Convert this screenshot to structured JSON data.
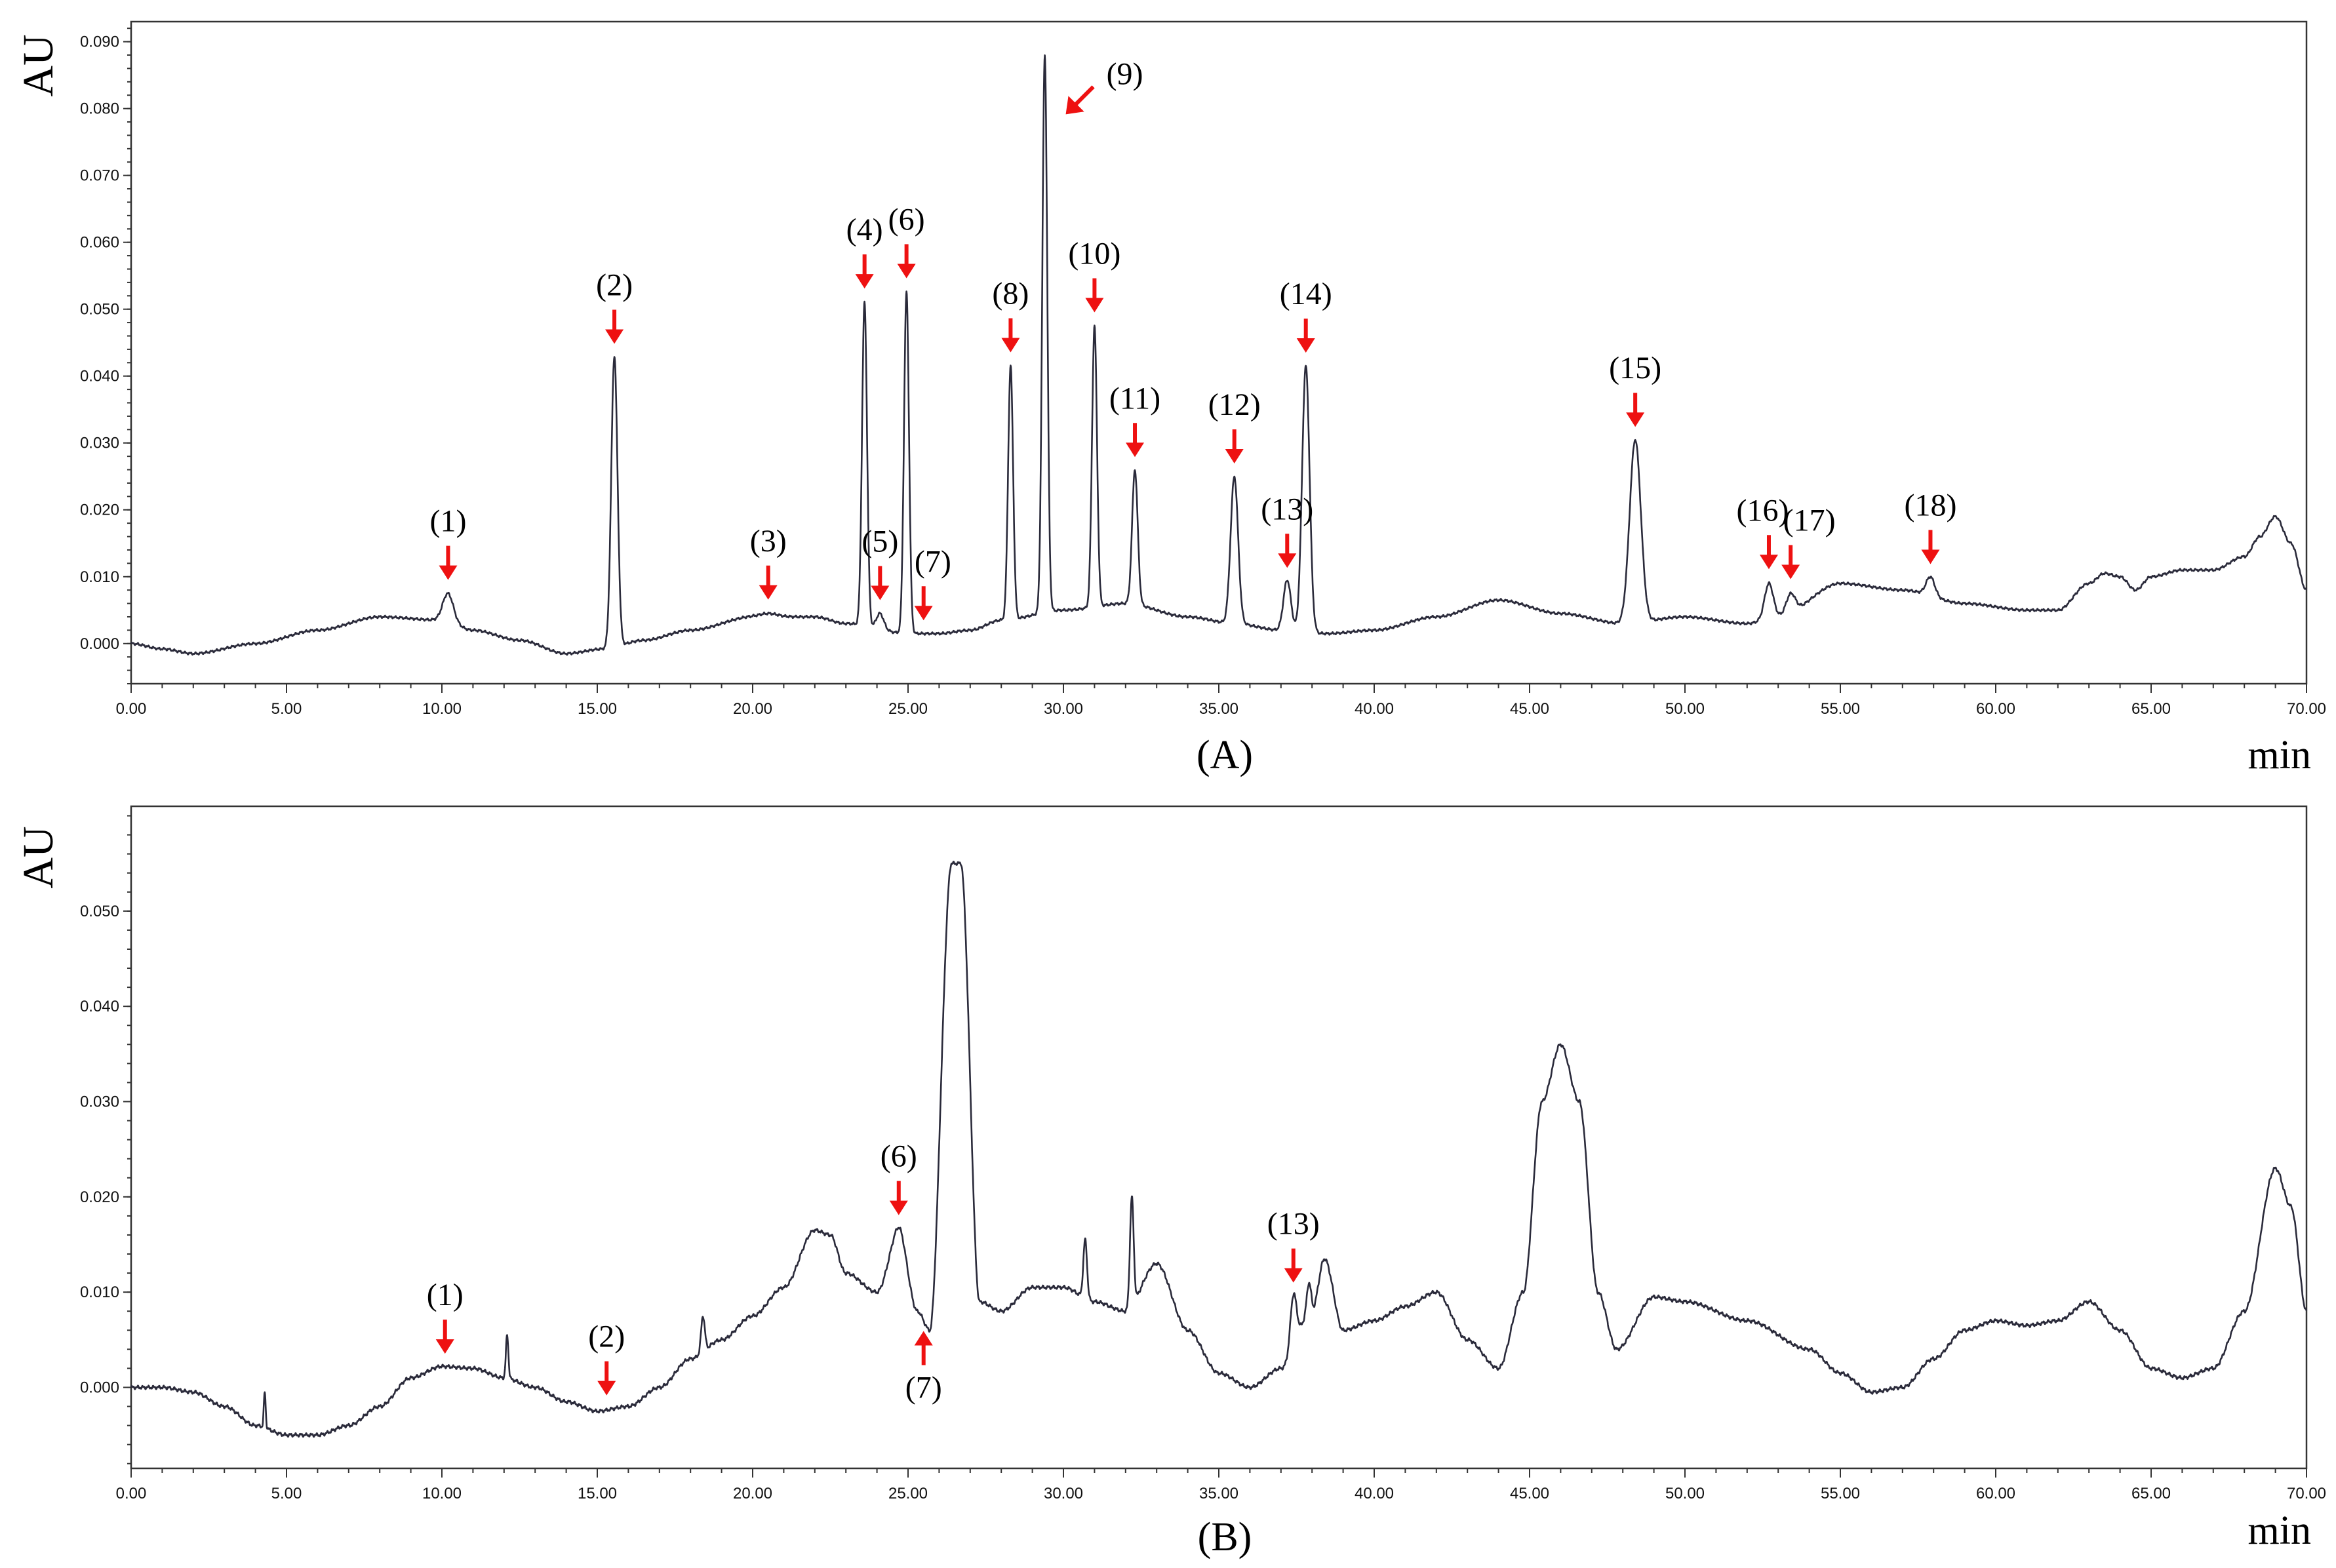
{
  "chart_data": [
    {
      "type": "line",
      "panel_label": "(A)",
      "ylabel": "AU",
      "xlabel": "min",
      "xlim": [
        0,
        70
      ],
      "ylim": [
        -0.006,
        0.093
      ],
      "x_ticks": [
        "0.00",
        "5.00",
        "10.00",
        "15.00",
        "20.00",
        "25.00",
        "30.00",
        "35.00",
        "40.00",
        "45.00",
        "50.00",
        "55.00",
        "60.00",
        "65.00",
        "70.00"
      ],
      "y_ticks": [
        "0.000",
        "0.010",
        "0.020",
        "0.030",
        "0.040",
        "0.050",
        "0.060",
        "0.070",
        "0.080",
        "0.090"
      ],
      "baseline": [
        [
          0,
          0.0
        ],
        [
          1,
          -0.0008
        ],
        [
          2,
          -0.0015
        ],
        [
          4,
          0.0
        ],
        [
          6,
          0.002
        ],
        [
          8,
          0.004
        ],
        [
          10,
          0.0035
        ],
        [
          11,
          0.002
        ],
        [
          12.5,
          0.0005
        ],
        [
          14,
          -0.0015
        ],
        [
          15.2,
          -0.0008
        ],
        [
          16.5,
          0.0005
        ],
        [
          18,
          0.002
        ],
        [
          20,
          0.004
        ],
        [
          22,
          0.004
        ],
        [
          23,
          0.003
        ],
        [
          25,
          0.0015
        ],
        [
          26,
          0.0015
        ],
        [
          27,
          0.002
        ],
        [
          28,
          0.0035
        ],
        [
          30,
          0.005
        ],
        [
          32,
          0.006
        ],
        [
          34,
          0.004
        ],
        [
          35.5,
          0.003
        ],
        [
          37,
          0.002
        ],
        [
          38.5,
          0.0015
        ],
        [
          40,
          0.002
        ],
        [
          42,
          0.004
        ],
        [
          44,
          0.0065
        ],
        [
          46,
          0.0045
        ],
        [
          48,
          0.003
        ],
        [
          50,
          0.004
        ],
        [
          52,
          0.003
        ],
        [
          53,
          0.004
        ],
        [
          55,
          0.009
        ],
        [
          57,
          0.008
        ],
        [
          59,
          0.006
        ],
        [
          61,
          0.005
        ],
        [
          62,
          0.005
        ],
        [
          63,
          0.009
        ],
        [
          63.5,
          0.0105
        ],
        [
          64,
          0.01
        ],
        [
          64.5,
          0.008
        ],
        [
          65,
          0.01
        ],
        [
          66,
          0.011
        ],
        [
          67,
          0.011
        ],
        [
          68,
          0.013
        ],
        [
          68.5,
          0.016
        ],
        [
          69,
          0.019
        ],
        [
          69.5,
          0.015
        ],
        [
          70,
          0.008
        ]
      ],
      "peaks": [
        {
          "label": "(1)",
          "x": 10.2,
          "y": 0.0075,
          "w": 0.17
        },
        {
          "label": "(2)",
          "x": 15.55,
          "y": 0.043,
          "w": 0.1
        },
        {
          "label": "(3)",
          "x": 20.5,
          "y": 0.0045,
          "w": 0.3
        },
        {
          "label": "(4)",
          "x": 23.6,
          "y": 0.051,
          "w": 0.08
        },
        {
          "label": "(5)",
          "x": 24.1,
          "y": 0.0045,
          "w": 0.12
        },
        {
          "label": "(6)",
          "x": 24.95,
          "y": 0.0525,
          "w": 0.08
        },
        {
          "label": "(7)",
          "x": 25.5,
          "y": 0.0015,
          "w": 0.05
        },
        {
          "label": "(8)",
          "x": 28.3,
          "y": 0.0415,
          "w": 0.08
        },
        {
          "label": "(9)",
          "x": 29.4,
          "y": 0.088,
          "w": 0.08
        },
        {
          "label": "(10)",
          "x": 31.0,
          "y": 0.0475,
          "w": 0.08
        },
        {
          "label": "(11)",
          "x": 32.3,
          "y": 0.026,
          "w": 0.09
        },
        {
          "label": "(12)",
          "x": 35.5,
          "y": 0.025,
          "w": 0.12
        },
        {
          "label": "(13)",
          "x": 37.2,
          "y": 0.0095,
          "w": 0.12
        },
        {
          "label": "(14)",
          "x": 37.8,
          "y": 0.0415,
          "w": 0.12
        },
        {
          "label": "(15)",
          "x": 48.4,
          "y": 0.0305,
          "w": 0.18
        },
        {
          "label": "(16)",
          "x": 52.7,
          "y": 0.009,
          "w": 0.14
        },
        {
          "label": "(17)",
          "x": 53.4,
          "y": 0.0075,
          "w": 0.15
        },
        {
          "label": "(18)",
          "x": 57.9,
          "y": 0.01,
          "w": 0.14
        }
      ]
    },
    {
      "type": "line",
      "panel_label": "(B)",
      "ylabel": "AU",
      "xlabel": "min",
      "xlim": [
        0,
        70
      ],
      "ylim": [
        -0.0085,
        0.061
      ],
      "x_ticks": [
        "0.00",
        "5.00",
        "10.00",
        "15.00",
        "20.00",
        "25.00",
        "30.00",
        "35.00",
        "40.00",
        "45.00",
        "50.00",
        "55.00",
        "60.00",
        "65.00",
        "70.00"
      ],
      "y_ticks": [
        "0.000",
        "0.010",
        "0.020",
        "0.030",
        "0.040",
        "0.050"
      ],
      "baseline": [
        [
          0,
          0.0
        ],
        [
          1,
          0.0
        ],
        [
          2,
          -0.0005
        ],
        [
          3,
          -0.002
        ],
        [
          4,
          -0.004
        ],
        [
          5,
          -0.005
        ],
        [
          6,
          -0.005
        ],
        [
          7,
          -0.004
        ],
        [
          8,
          -0.002
        ],
        [
          9,
          0.001
        ],
        [
          10,
          0.0022
        ],
        [
          11,
          0.002
        ],
        [
          12,
          0.001
        ],
        [
          13,
          0.0
        ],
        [
          14,
          -0.0015
        ],
        [
          15,
          -0.0025
        ],
        [
          16,
          -0.002
        ],
        [
          17,
          0.0
        ],
        [
          18,
          0.003
        ],
        [
          19,
          0.005
        ],
        [
          20,
          0.0075
        ],
        [
          21,
          0.0105
        ],
        [
          22,
          0.0165
        ],
        [
          22.5,
          0.016
        ],
        [
          23,
          0.012
        ],
        [
          24,
          0.01
        ],
        [
          24.7,
          0.016
        ],
        [
          25.3,
          0.008
        ],
        [
          25.7,
          0.006
        ],
        [
          26.4,
          0.055
        ],
        [
          26.7,
          0.055
        ],
        [
          27.3,
          0.009
        ],
        [
          28,
          0.008
        ],
        [
          29,
          0.0105
        ],
        [
          30,
          0.0105
        ],
        [
          31,
          0.009
        ],
        [
          32,
          0.008
        ],
        [
          33,
          0.013
        ],
        [
          34,
          0.006
        ],
        [
          35,
          0.0015
        ],
        [
          36,
          0.0
        ],
        [
          37,
          0.002
        ],
        [
          38,
          0.008
        ],
        [
          38.4,
          0.0135
        ],
        [
          39,
          0.006
        ],
        [
          40,
          0.007
        ],
        [
          41,
          0.0085
        ],
        [
          42,
          0.01
        ],
        [
          43,
          0.005
        ],
        [
          44,
          0.002
        ],
        [
          44.8,
          0.01
        ],
        [
          45.4,
          0.03
        ],
        [
          46,
          0.036
        ],
        [
          46.6,
          0.03
        ],
        [
          47.2,
          0.01
        ],
        [
          47.8,
          0.004
        ],
        [
          49,
          0.0095
        ],
        [
          50,
          0.009
        ],
        [
          52,
          0.007
        ],
        [
          54,
          0.004
        ],
        [
          55,
          0.0015
        ],
        [
          56,
          -0.0005
        ],
        [
          57,
          0.0
        ],
        [
          58,
          0.003
        ],
        [
          59,
          0.006
        ],
        [
          60,
          0.007
        ],
        [
          61,
          0.0065
        ],
        [
          62,
          0.007
        ],
        [
          63,
          0.009
        ],
        [
          64,
          0.006
        ],
        [
          65,
          0.002
        ],
        [
          66,
          0.001
        ],
        [
          67,
          0.002
        ],
        [
          68,
          0.008
        ],
        [
          69,
          0.023
        ],
        [
          69.5,
          0.019
        ],
        [
          70,
          0.008
        ]
      ],
      "peaks": [
        {
          "label": "(1)",
          "x": 10.1,
          "y": 0.0022,
          "w": 0.15
        },
        {
          "label": "(2)",
          "x": 15.3,
          "y": -0.0025,
          "w": 0.05
        },
        {
          "label": "(6)",
          "x": 24.7,
          "y": 0.0168,
          "w": 0.15
        },
        {
          "label": "(7)",
          "x": 25.5,
          "y": 0.006,
          "w": 0.05
        },
        {
          "label": "(13)",
          "x": 37.4,
          "y": 0.0098,
          "w": 0.1
        }
      ],
      "extra_spikes": [
        {
          "x": 4.3,
          "y": -0.0005,
          "w": 0.03
        },
        {
          "x": 12.1,
          "y": 0.0055,
          "w": 0.04
        },
        {
          "x": 18.4,
          "y": 0.0075,
          "w": 0.06
        },
        {
          "x": 30.7,
          "y": 0.0155,
          "w": 0.06
        },
        {
          "x": 32.2,
          "y": 0.02,
          "w": 0.06
        },
        {
          "x": 37.9,
          "y": 0.011,
          "w": 0.07
        }
      ]
    }
  ]
}
